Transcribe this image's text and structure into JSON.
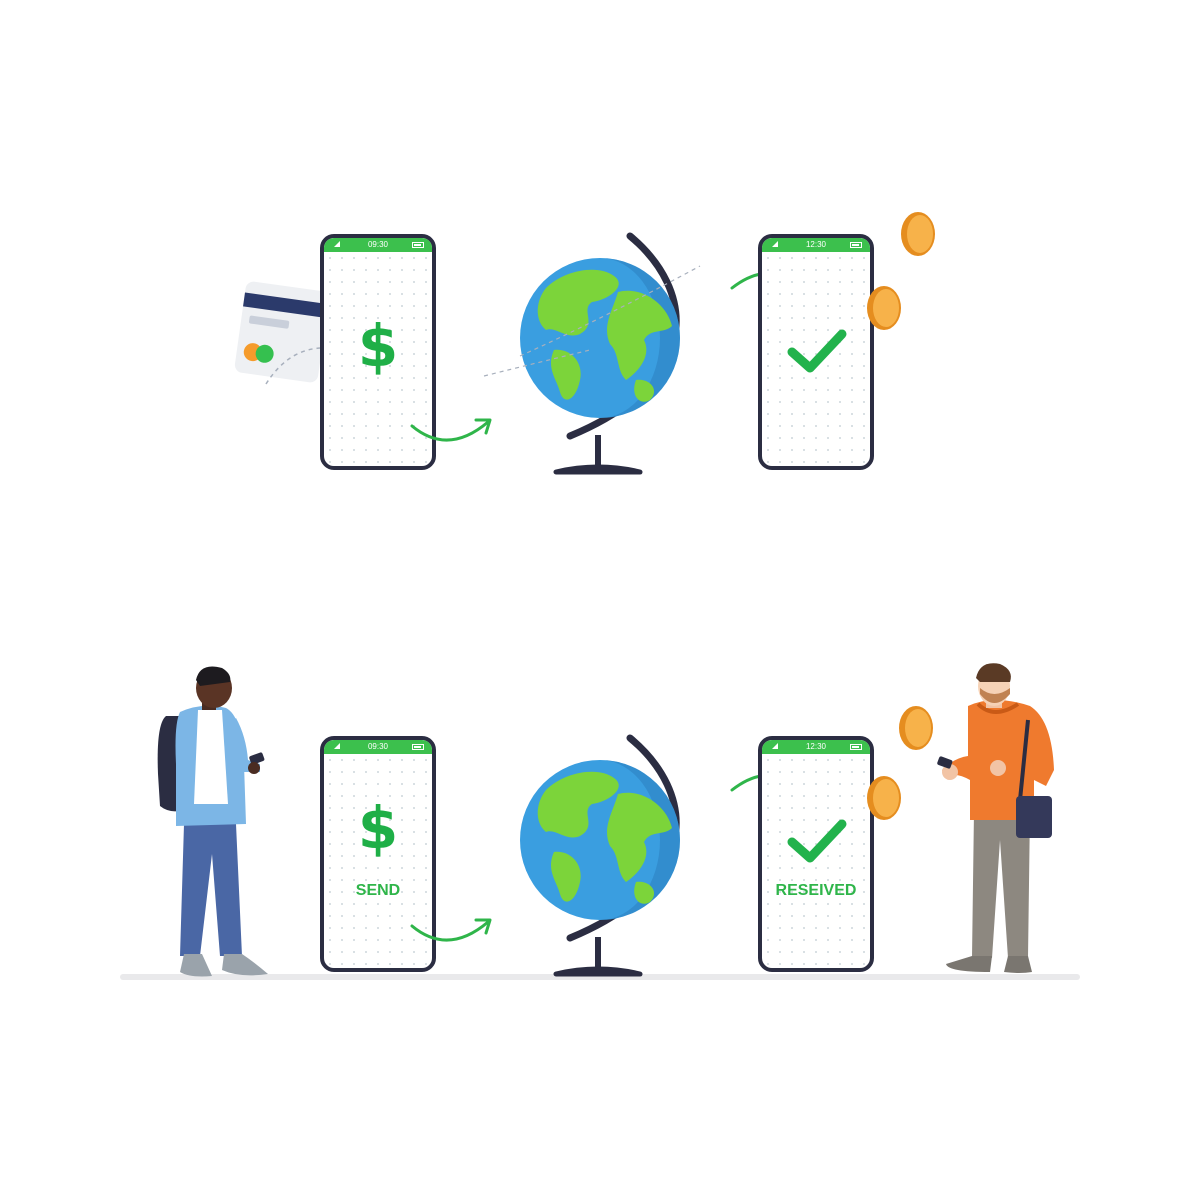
{
  "rows": [
    {
      "sender_phone": {
        "time": "09:30",
        "symbol": "$",
        "label": ""
      },
      "receiver_phone": {
        "time": "12:30",
        "label": ""
      }
    },
    {
      "sender_phone": {
        "time": "09:30",
        "symbol": "$",
        "label": "SEND"
      },
      "receiver_phone": {
        "time": "12:30",
        "label": "RESEIVED"
      }
    }
  ],
  "colors": {
    "brand_green": "#3cc04d",
    "check_green": "#22b24c",
    "coin_orange": "#f5a43a",
    "ocean_blue": "#3a9ee0",
    "land_green": "#7cd43a",
    "frame_navy": "#2b2d42"
  },
  "icons": [
    "credit-card-icon",
    "dollar-icon",
    "globe-icon",
    "check-icon",
    "coin-icon",
    "arrow-icon"
  ]
}
